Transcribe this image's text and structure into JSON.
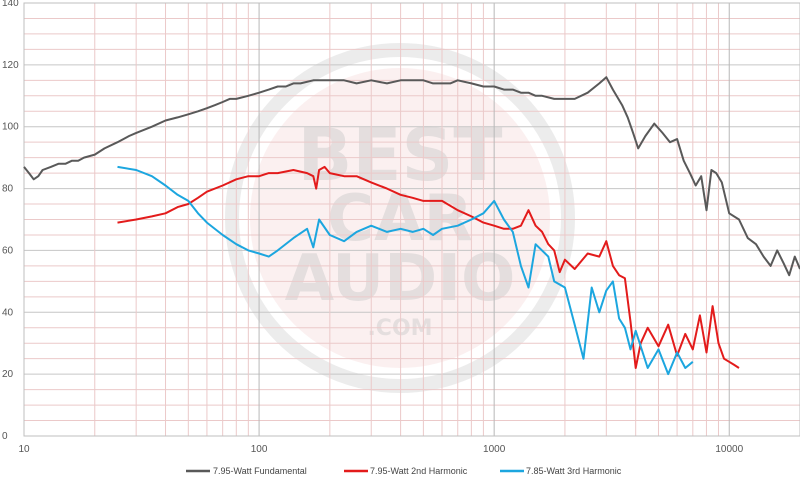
{
  "chart_data": {
    "type": "line",
    "title": "",
    "xlabel": "",
    "ylabel": "",
    "xscale": "log",
    "xlim": [
      10,
      20000
    ],
    "ylim": [
      0,
      140
    ],
    "grid": true,
    "legend_position": "bottom",
    "x_tick_labels": [
      "10",
      "100",
      "1000",
      "10000"
    ],
    "y_tick_labels": [
      "0",
      "20",
      "40",
      "60",
      "80",
      "100",
      "120",
      "140"
    ],
    "watermark": [
      "BEST",
      "CAR",
      "AUDIO",
      ".COM"
    ],
    "series": [
      {
        "name": "7.95-Watt Fundamental",
        "color": "#595959",
        "points": [
          [
            10,
            87
          ],
          [
            10.5,
            85
          ],
          [
            11,
            83
          ],
          [
            11.5,
            84
          ],
          [
            12,
            86
          ],
          [
            13,
            87
          ],
          [
            14,
            88
          ],
          [
            15,
            88
          ],
          [
            16,
            89
          ],
          [
            17,
            89
          ],
          [
            18,
            90
          ],
          [
            20,
            91
          ],
          [
            22,
            93
          ],
          [
            25,
            95
          ],
          [
            28,
            97
          ],
          [
            30,
            98
          ],
          [
            35,
            100
          ],
          [
            40,
            102
          ],
          [
            45,
            103
          ],
          [
            50,
            104
          ],
          [
            55,
            105
          ],
          [
            60,
            106
          ],
          [
            65,
            107
          ],
          [
            70,
            108
          ],
          [
            75,
            109
          ],
          [
            80,
            109
          ],
          [
            90,
            110
          ],
          [
            100,
            111
          ],
          [
            110,
            112
          ],
          [
            120,
            113
          ],
          [
            130,
            113
          ],
          [
            140,
            114
          ],
          [
            150,
            114
          ],
          [
            170,
            115
          ],
          [
            200,
            115
          ],
          [
            230,
            115
          ],
          [
            260,
            114
          ],
          [
            300,
            115
          ],
          [
            350,
            114
          ],
          [
            400,
            115
          ],
          [
            450,
            115
          ],
          [
            500,
            115
          ],
          [
            550,
            114
          ],
          [
            600,
            114
          ],
          [
            650,
            114
          ],
          [
            700,
            115
          ],
          [
            800,
            114
          ],
          [
            900,
            113
          ],
          [
            1000,
            113
          ],
          [
            1100,
            112
          ],
          [
            1200,
            112
          ],
          [
            1300,
            111
          ],
          [
            1400,
            111
          ],
          [
            1500,
            110
          ],
          [
            1600,
            110
          ],
          [
            1800,
            109
          ],
          [
            2000,
            109
          ],
          [
            2200,
            109
          ],
          [
            2500,
            111
          ],
          [
            2800,
            114
          ],
          [
            3000,
            116
          ],
          [
            3200,
            112
          ],
          [
            3500,
            107
          ],
          [
            3700,
            103
          ],
          [
            3900,
            98
          ],
          [
            4100,
            93
          ],
          [
            4400,
            97
          ],
          [
            4800,
            101
          ],
          [
            5200,
            98
          ],
          [
            5600,
            95
          ],
          [
            6000,
            96
          ],
          [
            6400,
            89
          ],
          [
            6800,
            85
          ],
          [
            7200,
            81
          ],
          [
            7600,
            84
          ],
          [
            8000,
            73
          ],
          [
            8400,
            86
          ],
          [
            8800,
            85
          ],
          [
            9300,
            82
          ],
          [
            10000,
            72
          ],
          [
            11000,
            70
          ],
          [
            12000,
            64
          ],
          [
            13000,
            62
          ],
          [
            14000,
            58
          ],
          [
            15000,
            55
          ],
          [
            16000,
            60
          ],
          [
            17000,
            56
          ],
          [
            18000,
            52
          ],
          [
            19000,
            58
          ],
          [
            20000,
            54
          ]
        ]
      },
      {
        "name": "7.95-Watt 2nd Harmonic",
        "color": "#e31b1b",
        "points": [
          [
            25,
            69
          ],
          [
            30,
            70
          ],
          [
            35,
            71
          ],
          [
            40,
            72
          ],
          [
            45,
            74
          ],
          [
            50,
            75
          ],
          [
            55,
            77
          ],
          [
            60,
            79
          ],
          [
            70,
            81
          ],
          [
            80,
            83
          ],
          [
            90,
            84
          ],
          [
            100,
            84
          ],
          [
            110,
            85
          ],
          [
            120,
            85
          ],
          [
            140,
            86
          ],
          [
            160,
            85
          ],
          [
            170,
            84
          ],
          [
            175,
            80
          ],
          [
            180,
            86
          ],
          [
            190,
            87
          ],
          [
            200,
            85
          ],
          [
            230,
            84
          ],
          [
            260,
            84
          ],
          [
            300,
            82
          ],
          [
            350,
            80
          ],
          [
            400,
            78
          ],
          [
            450,
            77
          ],
          [
            500,
            76
          ],
          [
            550,
            76
          ],
          [
            600,
            76
          ],
          [
            700,
            73
          ],
          [
            800,
            71
          ],
          [
            900,
            69
          ],
          [
            1000,
            68
          ],
          [
            1100,
            67
          ],
          [
            1200,
            67
          ],
          [
            1300,
            68
          ],
          [
            1400,
            73
          ],
          [
            1500,
            68
          ],
          [
            1600,
            66
          ],
          [
            1700,
            62
          ],
          [
            1800,
            60
          ],
          [
            1900,
            53
          ],
          [
            2000,
            57
          ],
          [
            2200,
            54
          ],
          [
            2500,
            59
          ],
          [
            2800,
            58
          ],
          [
            3000,
            63
          ],
          [
            3200,
            55
          ],
          [
            3400,
            52
          ],
          [
            3600,
            51
          ],
          [
            3800,
            37
          ],
          [
            4000,
            22
          ],
          [
            4200,
            30
          ],
          [
            4500,
            35
          ],
          [
            5000,
            29
          ],
          [
            5500,
            36
          ],
          [
            6000,
            26
          ],
          [
            6500,
            33
          ],
          [
            7000,
            28
          ],
          [
            7500,
            39
          ],
          [
            8000,
            27
          ],
          [
            8500,
            42
          ],
          [
            9000,
            30
          ],
          [
            9500,
            25
          ],
          [
            10000,
            24
          ],
          [
            10500,
            23
          ],
          [
            11000,
            22
          ]
        ]
      },
      {
        "name": "7.85-Watt 3rd Harmonic",
        "color": "#1ca6df",
        "points": [
          [
            25,
            87
          ],
          [
            30,
            86
          ],
          [
            35,
            84
          ],
          [
            40,
            81
          ],
          [
            45,
            78
          ],
          [
            50,
            76
          ],
          [
            55,
            72
          ],
          [
            60,
            69
          ],
          [
            70,
            65
          ],
          [
            80,
            62
          ],
          [
            90,
            60
          ],
          [
            100,
            59
          ],
          [
            110,
            58
          ],
          [
            120,
            60
          ],
          [
            140,
            64
          ],
          [
            160,
            67
          ],
          [
            170,
            61
          ],
          [
            180,
            70
          ],
          [
            200,
            65
          ],
          [
            230,
            63
          ],
          [
            260,
            66
          ],
          [
            300,
            68
          ],
          [
            350,
            66
          ],
          [
            400,
            67
          ],
          [
            450,
            66
          ],
          [
            500,
            67
          ],
          [
            550,
            65
          ],
          [
            600,
            67
          ],
          [
            700,
            68
          ],
          [
            800,
            70
          ],
          [
            900,
            72
          ],
          [
            1000,
            76
          ],
          [
            1100,
            70
          ],
          [
            1200,
            66
          ],
          [
            1300,
            55
          ],
          [
            1400,
            48
          ],
          [
            1500,
            62
          ],
          [
            1700,
            58
          ],
          [
            1800,
            50
          ],
          [
            2000,
            48
          ],
          [
            2200,
            36
          ],
          [
            2400,
            25
          ],
          [
            2600,
            48
          ],
          [
            2800,
            40
          ],
          [
            3000,
            47
          ],
          [
            3200,
            50
          ],
          [
            3400,
            38
          ],
          [
            3600,
            35
          ],
          [
            3800,
            28
          ],
          [
            4000,
            34
          ],
          [
            4500,
            22
          ],
          [
            5000,
            28
          ],
          [
            5500,
            20
          ],
          [
            6000,
            27
          ],
          [
            6500,
            22
          ],
          [
            7000,
            24
          ]
        ]
      }
    ]
  }
}
